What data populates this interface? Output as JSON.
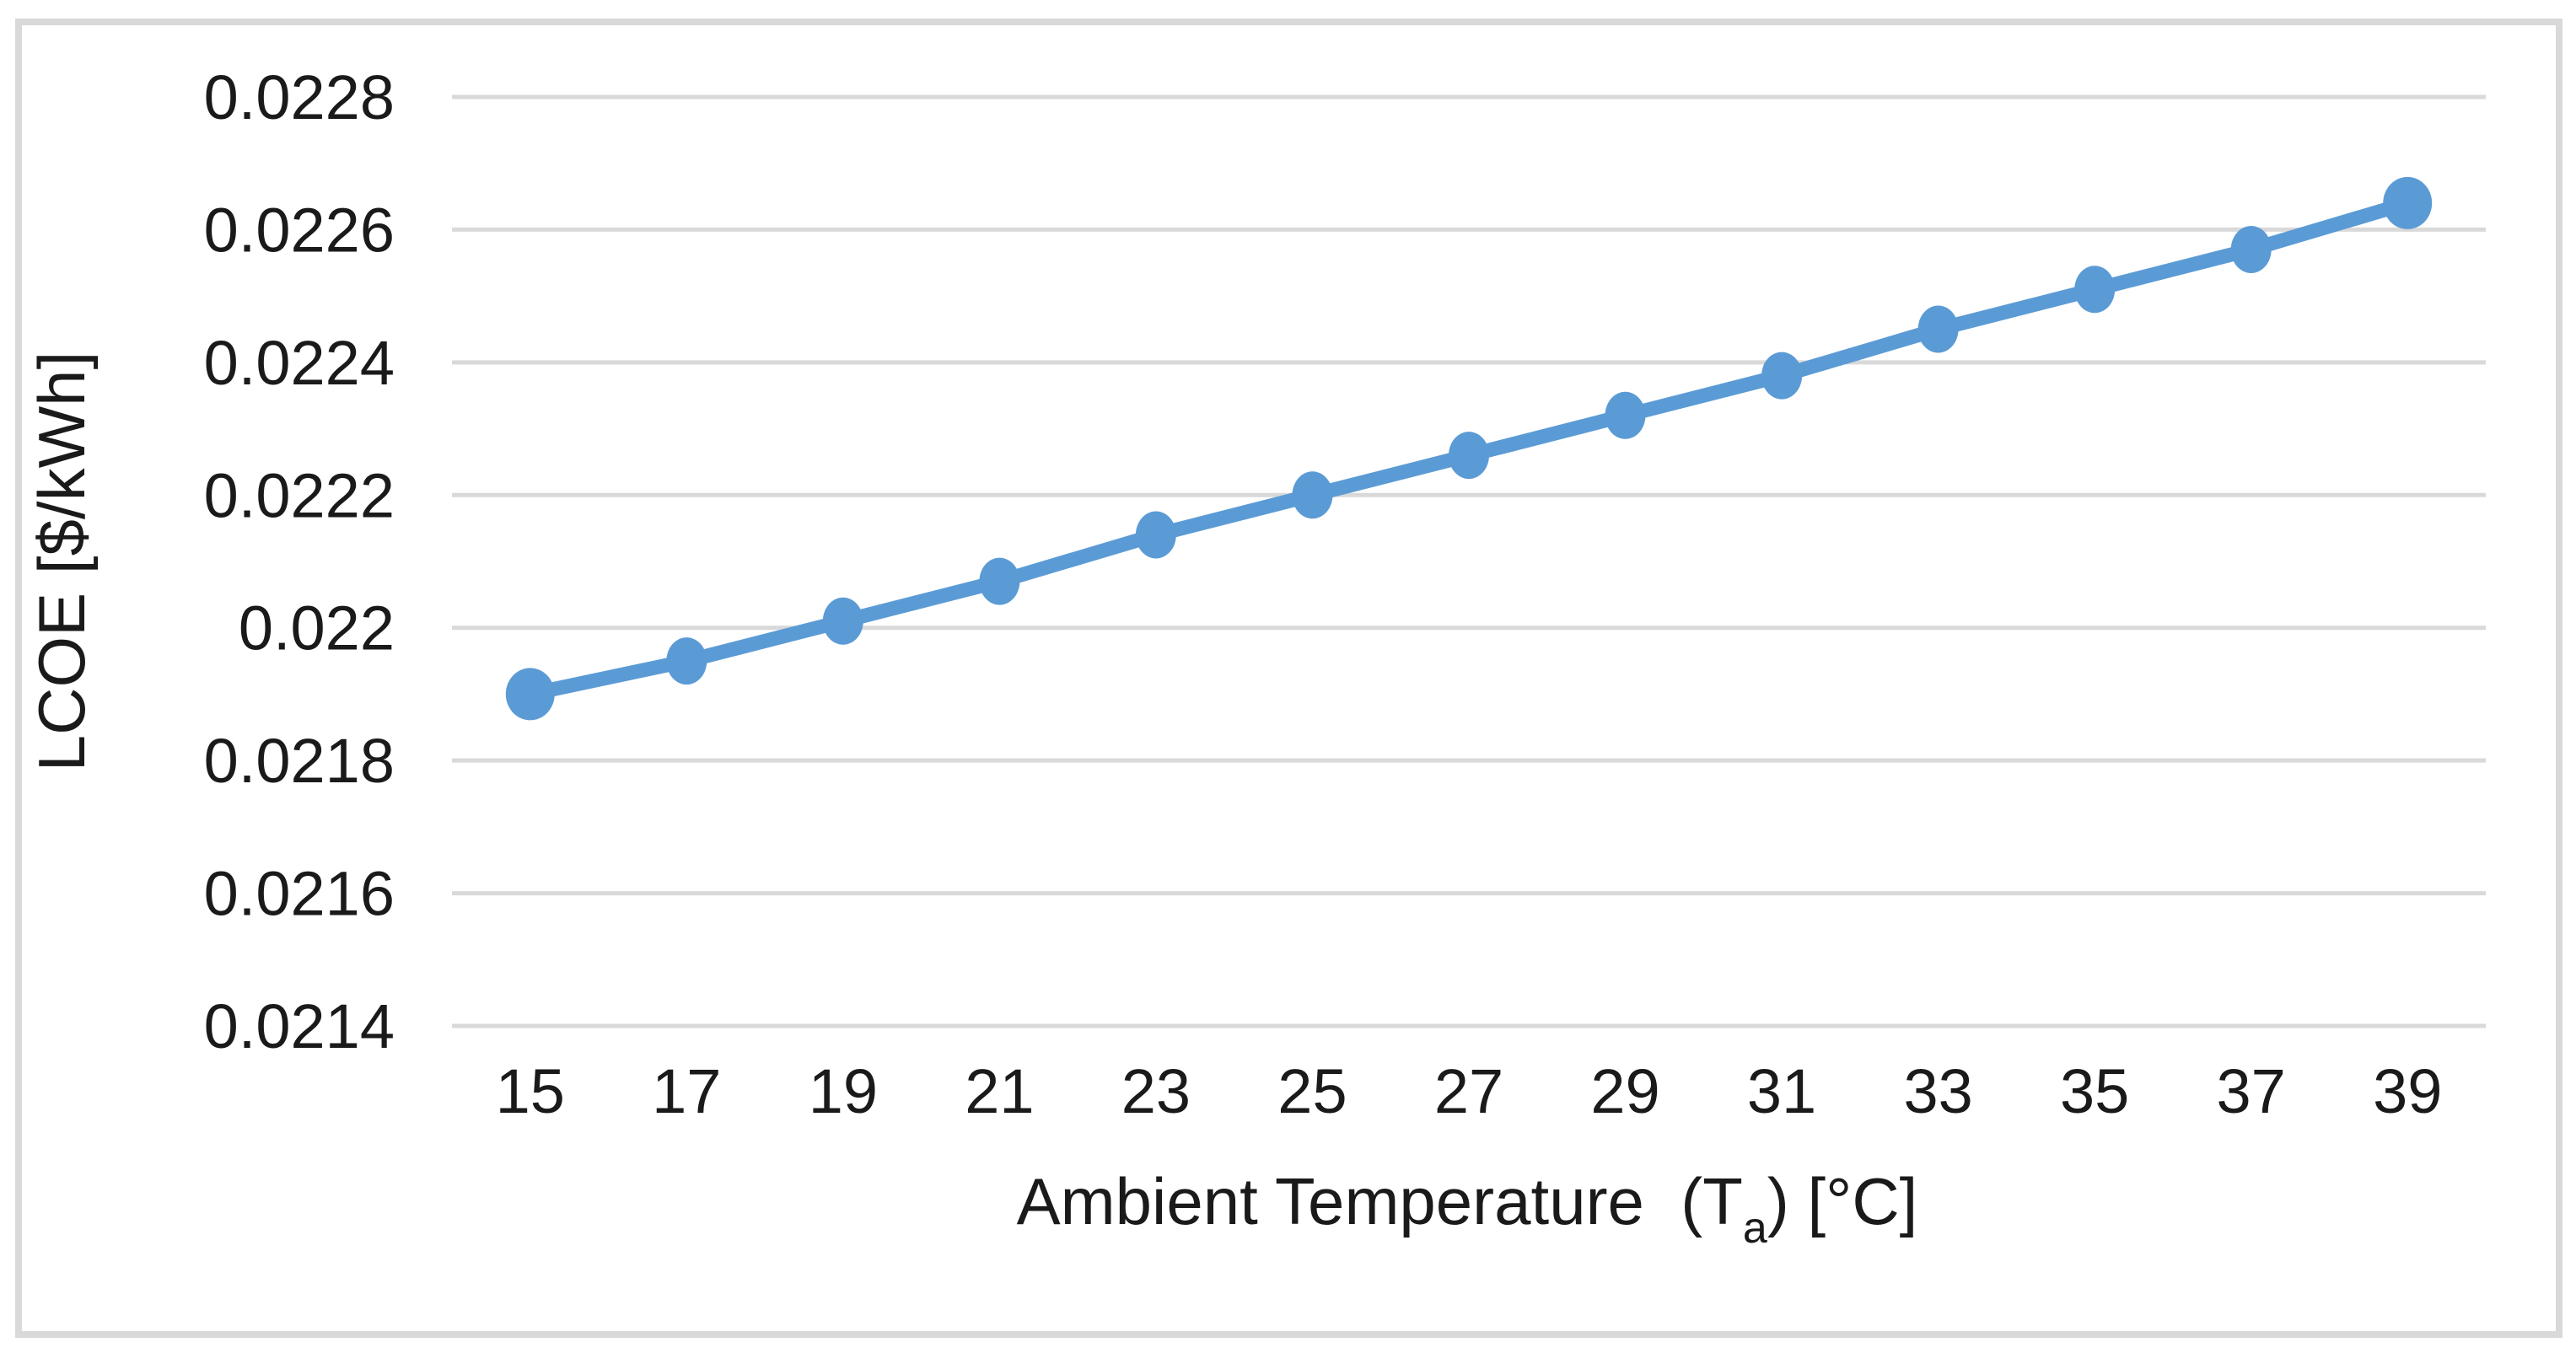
{
  "chart_data": {
    "type": "line",
    "title": "",
    "ylabel": "LCOE [$/kWh]",
    "xlabel_plain": "Ambient Temperature (Ta) [°C]",
    "xlabel_parts": {
      "main": "Ambient Temperature  (T",
      "sub": "a",
      "tail": ") [°C]"
    },
    "x": [
      15,
      17,
      19,
      21,
      23,
      25,
      27,
      29,
      31,
      33,
      35,
      37,
      39
    ],
    "xtick_labels": [
      "15",
      "17",
      "19",
      "21",
      "23",
      "25",
      "27",
      "29",
      "31",
      "33",
      "35",
      "37",
      "39"
    ],
    "series": [
      {
        "name": "LCOE",
        "values": [
          0.0219,
          0.02195,
          0.02201,
          0.02207,
          0.02214,
          0.0222,
          0.02226,
          0.02232,
          0.02238,
          0.02245,
          0.02251,
          0.02257,
          0.02264
        ]
      }
    ],
    "ylim": [
      0.0214,
      0.0228
    ],
    "yticks": [
      {
        "value": 0.0228,
        "label": "0.0228"
      },
      {
        "value": 0.0226,
        "label": "0.0226"
      },
      {
        "value": 0.0224,
        "label": "0.0224"
      },
      {
        "value": 0.0222,
        "label": "0.0222"
      },
      {
        "value": 0.022,
        "label": "0.022"
      },
      {
        "value": 0.0218,
        "label": "0.0218"
      },
      {
        "value": 0.0216,
        "label": "0.0216"
      },
      {
        "value": 0.0214,
        "label": "0.0214"
      }
    ],
    "grid": "horizontal",
    "legend": "none",
    "colors": {
      "series": "#5B9BD5",
      "gridline": "#D9D9D9",
      "frame_border": "#D9D9D9",
      "text": "#1A1A1A",
      "background": "#FFFFFF"
    }
  }
}
